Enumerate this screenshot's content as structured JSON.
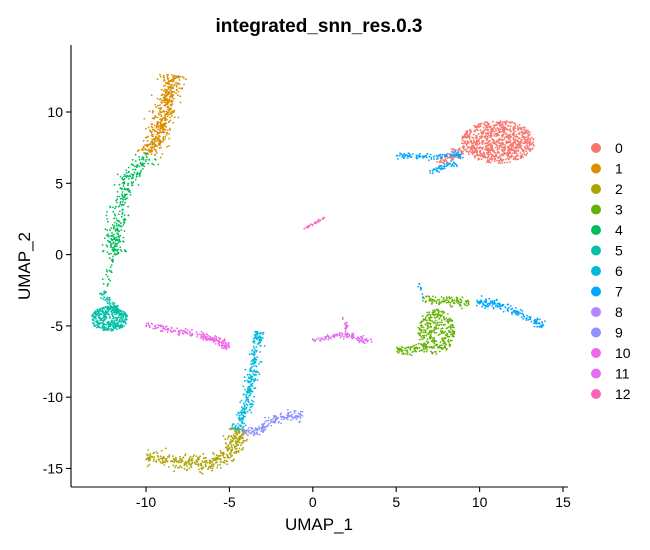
{
  "chart_data": {
    "type": "scatter",
    "title": "integrated_snn_res.0.3",
    "xlabel": "UMAP_1",
    "ylabel": "UMAP_2",
    "xlim": [
      -14.5,
      15.3
    ],
    "ylim": [
      -16.3,
      14.7
    ],
    "x_ticks": [
      -10,
      -5,
      0,
      5,
      10,
      15
    ],
    "x_tick_labels": [
      "-10",
      "-5",
      "0",
      "5",
      "10",
      "15"
    ],
    "y_ticks": [
      -15,
      -10,
      -5,
      0,
      5,
      10
    ],
    "y_tick_labels": [
      "-15",
      "-10",
      "-5",
      "0",
      "5",
      "10"
    ],
    "grid": false,
    "legend_position": "right",
    "clusters": [
      {
        "name": "0",
        "color": "#F8766D",
        "shapes": [
          {
            "kind": "ellipse",
            "cx": 11.1,
            "cy": 7.9,
            "rx": 2.2,
            "ry": 1.5,
            "n": 900
          },
          {
            "kind": "curve",
            "pts": [
              [
                9.0,
                7.2
              ],
              [
                8.2,
                6.8
              ],
              [
                7.5,
                6.4
              ]
            ],
            "w": 0.45,
            "n": 70
          }
        ]
      },
      {
        "name": "1",
        "color": "#DB8E00",
        "shapes": [
          {
            "kind": "curve",
            "pts": [
              [
                -8.4,
                12.6
              ],
              [
                -8.6,
                11.0
              ],
              [
                -9.0,
                9.5
              ],
              [
                -9.4,
                8.2
              ],
              [
                -9.8,
                7.0
              ]
            ],
            "w": 0.65,
            "n": 480
          }
        ]
      },
      {
        "name": "2",
        "color": "#AEA200",
        "shapes": [
          {
            "kind": "curve",
            "pts": [
              [
                -10.0,
                -14.2
              ],
              [
                -8.0,
                -14.5
              ],
              [
                -6.5,
                -14.7
              ],
              [
                -5.2,
                -14.3
              ],
              [
                -4.6,
                -13.0
              ],
              [
                -4.3,
                -12.2
              ]
            ],
            "w": 0.55,
            "n": 420
          }
        ]
      },
      {
        "name": "3",
        "color": "#64B200",
        "shapes": [
          {
            "kind": "ellipse",
            "cx": 7.4,
            "cy": -5.4,
            "rx": 1.1,
            "ry": 1.6,
            "n": 330
          },
          {
            "kind": "curve",
            "pts": [
              [
                6.6,
                -3.2
              ],
              [
                8.0,
                -3.3
              ],
              [
                9.4,
                -3.3
              ]
            ],
            "w": 0.35,
            "n": 100
          },
          {
            "kind": "curve",
            "pts": [
              [
                6.8,
                -6.6
              ],
              [
                6.0,
                -6.7
              ],
              [
                5.0,
                -6.7
              ]
            ],
            "w": 0.35,
            "n": 70
          }
        ]
      },
      {
        "name": "4",
        "color": "#00BD5C",
        "shapes": [
          {
            "kind": "curve",
            "pts": [
              [
                -9.8,
                7.0
              ],
              [
                -10.8,
                5.8
              ],
              [
                -11.3,
                4.5
              ],
              [
                -11.6,
                3.0
              ],
              [
                -11.8,
                1.2
              ],
              [
                -12.0,
                0.0
              ]
            ],
            "w": 0.55,
            "n": 330
          },
          {
            "kind": "curve",
            "pts": [
              [
                -12.0,
                0.0
              ],
              [
                -12.2,
                -1.3
              ],
              [
                -12.5,
                -2.4
              ]
            ],
            "w": 0.2,
            "n": 25
          }
        ]
      },
      {
        "name": "5",
        "color": "#00C1A7",
        "shapes": [
          {
            "kind": "ellipse",
            "cx": -12.2,
            "cy": -4.5,
            "rx": 1.1,
            "ry": 0.85,
            "n": 380
          },
          {
            "kind": "curve",
            "pts": [
              [
                -12.6,
                -2.6
              ],
              [
                -12.3,
                -3.3
              ],
              [
                -11.8,
                -3.8
              ]
            ],
            "w": 0.3,
            "n": 50
          }
        ]
      },
      {
        "name": "6",
        "color": "#00BADE",
        "shapes": [
          {
            "kind": "curve",
            "pts": [
              [
                -3.2,
                -5.4
              ],
              [
                -3.4,
                -6.8
              ],
              [
                -3.6,
                -8.2
              ],
              [
                -3.8,
                -9.6
              ],
              [
                -4.1,
                -11.0
              ],
              [
                -4.5,
                -12.4
              ]
            ],
            "w": 0.35,
            "n": 300
          }
        ]
      },
      {
        "name": "7",
        "color": "#00A6FF",
        "shapes": [
          {
            "kind": "curve",
            "pts": [
              [
                5.0,
                7.0
              ],
              [
                6.2,
                6.9
              ],
              [
                7.3,
                6.8
              ],
              [
                8.4,
                7.0
              ],
              [
                9.0,
                7.0
              ]
            ],
            "w": 0.22,
            "n": 110
          },
          {
            "kind": "curve",
            "pts": [
              [
                7.0,
                5.7
              ],
              [
                7.8,
                6.2
              ],
              [
                8.6,
                6.4
              ]
            ],
            "w": 0.25,
            "n": 50
          },
          {
            "kind": "curve",
            "pts": [
              [
                9.8,
                -3.3
              ],
              [
                11.0,
                -3.5
              ],
              [
                12.2,
                -4.0
              ],
              [
                13.3,
                -4.7
              ],
              [
                13.8,
                -5.0
              ]
            ],
            "w": 0.32,
            "n": 170
          },
          {
            "kind": "curve",
            "pts": [
              [
                6.4,
                -2.0
              ],
              [
                6.5,
                -2.5
              ],
              [
                6.6,
                -3.0
              ]
            ],
            "w": 0.1,
            "n": 10
          }
        ]
      },
      {
        "name": "8",
        "color": "#B385FF",
        "shapes": []
      },
      {
        "name": "9",
        "color": "#8F91FF",
        "shapes": [
          {
            "kind": "curve",
            "pts": [
              [
                -4.2,
                -12.5
              ],
              [
                -3.2,
                -12.3
              ],
              [
                -2.4,
                -11.6
              ],
              [
                -1.5,
                -11.3
              ],
              [
                -0.6,
                -11.3
              ]
            ],
            "w": 0.35,
            "n": 160
          }
        ]
      },
      {
        "name": "10",
        "color": "#EF67EB",
        "shapes": [
          {
            "kind": "curve",
            "pts": [
              [
                -10.0,
                -4.9
              ],
              [
                -8.5,
                -5.3
              ],
              [
                -7.0,
                -5.6
              ],
              [
                -5.5,
                -6.1
              ],
              [
                -5.1,
                -6.6
              ]
            ],
            "w": 0.25,
            "n": 200
          }
        ]
      },
      {
        "name": "11",
        "color": "#E26FEF",
        "shapes": [
          {
            "kind": "curve",
            "pts": [
              [
                0.0,
                -6.0
              ],
              [
                1.0,
                -5.8
              ],
              [
                2.0,
                -5.6
              ],
              [
                2.8,
                -5.9
              ],
              [
                3.6,
                -6.2
              ]
            ],
            "w": 0.2,
            "n": 120
          },
          {
            "kind": "curve",
            "pts": [
              [
                1.9,
                -4.4
              ],
              [
                2.0,
                -5.0
              ],
              [
                2.1,
                -5.6
              ]
            ],
            "w": 0.12,
            "n": 20
          }
        ]
      },
      {
        "name": "12",
        "color": "#FF63B6",
        "shapes": [
          {
            "kind": "curve",
            "pts": [
              [
                -0.6,
                1.8
              ],
              [
                0.1,
                2.2
              ],
              [
                0.7,
                2.6
              ]
            ],
            "w": 0.06,
            "n": 30
          }
        ]
      }
    ]
  }
}
